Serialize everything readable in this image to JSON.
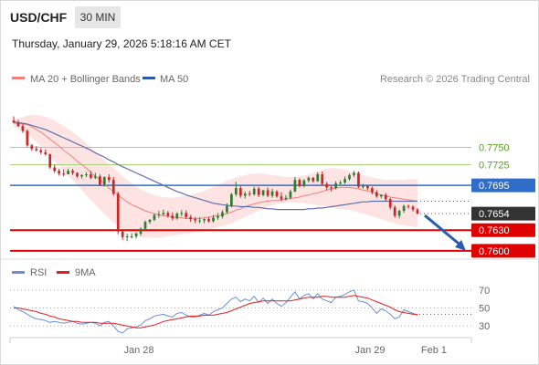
{
  "header": {
    "symbol": "USD/CHF",
    "timeframe": "30 MIN",
    "datetime": "Thursday, January 29, 2026 5:18:16 AM CET"
  },
  "legend": {
    "ma20_label": "MA 20 + Bollinger Bands",
    "ma50_label": "MA 50",
    "credit": "Research © 2026 Trading Central",
    "rsi_label": "RSI",
    "ma9_label": "9MA"
  },
  "colors": {
    "bull_candle": "#2e7d32",
    "bear_candle": "#c62828",
    "ma20": "#f08080",
    "bollinger_fill": "#fde4e2",
    "ma50": "#5b6fb0",
    "support": "#e00000",
    "pivot": "#2f6dc9",
    "resistance": "#a8d27a",
    "current_price": "#333333",
    "forecast_arrow": "#2a5db0",
    "rsi": "#6a8fd8",
    "rsi_ma9": "#e02020"
  },
  "chart_data": [
    {
      "type": "candlestick",
      "title": "USD/CHF",
      "x_ticks": [
        "Jan 28",
        "Jan 29",
        "Feb 1"
      ],
      "ylim": [
        0.758,
        0.7805
      ],
      "series": [
        {
          "name": "MA 20 + Bollinger Bands",
          "role": "ma20",
          "values": [
            0.7785,
            0.7785,
            0.7784,
            0.7783,
            0.778,
            0.7776,
            0.7772,
            0.7767,
            0.7762,
            0.7757,
            0.7752,
            0.7746,
            0.7741,
            0.7736,
            0.773,
            0.7725,
            0.772,
            0.7714,
            0.7708,
            0.7703,
            0.7697,
            0.7691,
            0.7686,
            0.7681,
            0.7676,
            0.7671,
            0.7667,
            0.7664,
            0.7661,
            0.7658,
            0.7656,
            0.7654,
            0.7652,
            0.7651,
            0.765,
            0.7649,
            0.7648,
            0.7648,
            0.7647,
            0.7647,
            0.7647,
            0.7647,
            0.7648,
            0.7649,
            0.765,
            0.7651,
            0.7652,
            0.7654,
            0.7656,
            0.7659,
            0.7661,
            0.7664,
            0.7666,
            0.7668,
            0.767,
            0.7671,
            0.7672,
            0.7673,
            0.7673,
            0.7674,
            0.7675,
            0.7676,
            0.7677,
            0.7678,
            0.768,
            0.7681,
            0.7683,
            0.7684,
            0.7686,
            0.7688,
            0.769,
            0.7691,
            0.7692,
            0.7692,
            0.7692,
            0.7691,
            0.769,
            0.7688,
            0.7687,
            0.7685,
            0.7683,
            0.7681,
            0.768,
            0.7678,
            0.7677,
            0.7676,
            0.7675,
            0.7674,
            0.7673,
            0.7672
          ]
        },
        {
          "name": "Bollinger upper",
          "role": "bb_upper",
          "values": [
            0.779,
            0.7792,
            0.7794,
            0.7796,
            0.7797,
            0.7797,
            0.7796,
            0.7794,
            0.7792,
            0.7789,
            0.7785,
            0.7781,
            0.7777,
            0.7772,
            0.7767,
            0.7762,
            0.7756,
            0.775,
            0.7744,
            0.7738,
            0.7732,
            0.7726,
            0.772,
            0.7714,
            0.7708,
            0.7703,
            0.7698,
            0.7693,
            0.7689,
            0.7686,
            0.7683,
            0.7681,
            0.7679,
            0.7678,
            0.7677,
            0.7677,
            0.7678,
            0.7679,
            0.768,
            0.7681,
            0.7683,
            0.7685,
            0.7687,
            0.769,
            0.7693,
            0.7696,
            0.7699,
            0.7702,
            0.7704,
            0.7706,
            0.7708,
            0.771,
            0.7711,
            0.7712,
            0.7712,
            0.7712,
            0.7711,
            0.771,
            0.7709,
            0.7708,
            0.7707,
            0.7707,
            0.7707,
            0.7708,
            0.7709,
            0.7711,
            0.7713,
            0.7715,
            0.7717,
            0.7719,
            0.772,
            0.772,
            0.7719,
            0.7718,
            0.7716,
            0.7714,
            0.7712,
            0.771,
            0.7708,
            0.7706,
            0.7705,
            0.7704,
            0.7703,
            0.7703,
            0.7703,
            0.7703,
            0.7703,
            0.7704,
            0.7704,
            0.7704
          ]
        },
        {
          "name": "Bollinger lower",
          "role": "bb_lower",
          "values": [
            0.778,
            0.7777,
            0.7773,
            0.7769,
            0.7764,
            0.7758,
            0.7751,
            0.7744,
            0.7737,
            0.773,
            0.7723,
            0.7716,
            0.7709,
            0.7702,
            0.7695,
            0.7688,
            0.7681,
            0.7674,
            0.7667,
            0.766,
            0.7653,
            0.7647,
            0.7641,
            0.7636,
            0.7631,
            0.7627,
            0.7624,
            0.7622,
            0.762,
            0.7619,
            0.7619,
            0.7619,
            0.7619,
            0.762,
            0.7621,
            0.7622,
            0.7623,
            0.7624,
            0.7625,
            0.7626,
            0.7627,
            0.7628,
            0.763,
            0.7631,
            0.7632,
            0.7634,
            0.7636,
            0.7638,
            0.764,
            0.7643,
            0.7646,
            0.7649,
            0.7652,
            0.7655,
            0.7658,
            0.7661,
            0.7664,
            0.7666,
            0.7668,
            0.7669,
            0.767,
            0.767,
            0.767,
            0.767,
            0.7669,
            0.7668,
            0.7667,
            0.7666,
            0.7665,
            0.7664,
            0.7663,
            0.7662,
            0.7661,
            0.766,
            0.7659,
            0.7658,
            0.7656,
            0.7654,
            0.7652,
            0.765,
            0.7648,
            0.7646,
            0.7644,
            0.7642,
            0.764,
            0.7638,
            0.7637,
            0.7636,
            0.7635,
            0.7634
          ]
        },
        {
          "name": "MA 50",
          "role": "ma50",
          "values": [
            0.7787,
            0.7786,
            0.7785,
            0.7784,
            0.7782,
            0.778,
            0.7778,
            0.7776,
            0.7773,
            0.777,
            0.7767,
            0.7764,
            0.7761,
            0.7758,
            0.7755,
            0.7752,
            0.7749,
            0.7746,
            0.7742,
            0.7739,
            0.7736,
            0.7732,
            0.7729,
            0.7725,
            0.7722,
            0.7719,
            0.7716,
            0.7713,
            0.771,
            0.7707,
            0.7704,
            0.7701,
            0.7698,
            0.7695,
            0.7692,
            0.7689,
            0.7686,
            0.7684,
            0.7681,
            0.7679,
            0.7677,
            0.7675,
            0.7673,
            0.7671,
            0.7669,
            0.7668,
            0.7667,
            0.7666,
            0.7665,
            0.7665,
            0.7664,
            0.7664,
            0.7664,
            0.7663,
            0.7663,
            0.7662,
            0.7661,
            0.7661,
            0.766,
            0.766,
            0.766,
            0.766,
            0.766,
            0.766,
            0.766,
            0.7661,
            0.7661,
            0.7662,
            0.7662,
            0.7663,
            0.7664,
            0.7665,
            0.7666,
            0.7667,
            0.7668,
            0.7669,
            0.767,
            0.7671,
            0.7671,
            0.7672,
            0.7672,
            0.7672,
            0.7672,
            0.7672,
            0.7672,
            0.7672,
            0.7672,
            0.7672,
            0.7672,
            0.7672
          ]
        },
        {
          "name": "candles",
          "role": "ohlc",
          "open": [
            0.7789,
            0.7786,
            0.7781,
            0.7774,
            0.7753,
            0.7748,
            0.7746,
            0.7743,
            0.774,
            0.7721,
            0.7716,
            0.7712,
            0.7711,
            0.7716,
            0.7713,
            0.7708,
            0.771,
            0.7711,
            0.7706,
            0.7708,
            0.7696,
            0.7707,
            0.7703,
            0.7683,
            0.7628,
            0.762,
            0.7621,
            0.7621,
            0.7625,
            0.7632,
            0.7642,
            0.7645,
            0.7652,
            0.7653,
            0.7655,
            0.7651,
            0.7647,
            0.7654,
            0.7655,
            0.7649,
            0.7646,
            0.7644,
            0.7644,
            0.7646,
            0.7643,
            0.7648,
            0.765,
            0.7656,
            0.7665,
            0.7682,
            0.7691,
            0.768,
            0.7683,
            0.7682,
            0.769,
            0.7681,
            0.7688,
            0.768,
            0.7686,
            0.7679,
            0.7675,
            0.7677,
            0.7686,
            0.7703,
            0.7694,
            0.7702,
            0.7706,
            0.7701,
            0.7711,
            0.7697,
            0.7692,
            0.7691,
            0.7698,
            0.7699,
            0.7704,
            0.771,
            0.7713,
            0.7693,
            0.7694,
            0.7691,
            0.7685,
            0.7679,
            0.7681,
            0.7675,
            0.7663,
            0.7651,
            0.7658,
            0.7665,
            0.7664,
            0.766
          ],
          "high": [
            0.7795,
            0.779,
            0.7784,
            0.7776,
            0.7755,
            0.7752,
            0.7749,
            0.7747,
            0.7741,
            0.7725,
            0.7719,
            0.7718,
            0.7719,
            0.7719,
            0.7714,
            0.7711,
            0.7714,
            0.7716,
            0.7713,
            0.7711,
            0.7708,
            0.7711,
            0.7707,
            0.7686,
            0.763,
            0.7625,
            0.7625,
            0.7627,
            0.7634,
            0.7644,
            0.7646,
            0.7654,
            0.7658,
            0.766,
            0.7658,
            0.7656,
            0.7656,
            0.7659,
            0.7659,
            0.7652,
            0.7649,
            0.7649,
            0.7647,
            0.7649,
            0.7652,
            0.7655,
            0.7659,
            0.7669,
            0.7684,
            0.77,
            0.7694,
            0.7686,
            0.7687,
            0.7693,
            0.7693,
            0.7688,
            0.7692,
            0.769,
            0.7688,
            0.7685,
            0.7681,
            0.7689,
            0.7707,
            0.7705,
            0.7704,
            0.7708,
            0.7707,
            0.7714,
            0.7715,
            0.77,
            0.7694,
            0.7701,
            0.7702,
            0.7708,
            0.7712,
            0.7716,
            0.7715,
            0.7697,
            0.7695,
            0.7693,
            0.7688,
            0.7682,
            0.7684,
            0.7677,
            0.7666,
            0.766,
            0.7667,
            0.7667,
            0.7666,
            0.7662
          ],
          "low": [
            0.7785,
            0.778,
            0.7771,
            0.7751,
            0.7745,
            0.7744,
            0.774,
            0.7738,
            0.7719,
            0.7713,
            0.7709,
            0.7708,
            0.7711,
            0.771,
            0.7706,
            0.7705,
            0.7707,
            0.7704,
            0.7704,
            0.7694,
            0.7693,
            0.7699,
            0.768,
            0.7624,
            0.7616,
            0.7614,
            0.7618,
            0.7618,
            0.7622,
            0.763,
            0.7639,
            0.7643,
            0.7648,
            0.7651,
            0.7648,
            0.7644,
            0.7645,
            0.765,
            0.7646,
            0.7642,
            0.764,
            0.764,
            0.764,
            0.7641,
            0.7641,
            0.7645,
            0.7647,
            0.7654,
            0.7663,
            0.7679,
            0.7677,
            0.7676,
            0.7679,
            0.768,
            0.7678,
            0.7679,
            0.7678,
            0.7677,
            0.7677,
            0.7672,
            0.7673,
            0.7675,
            0.7685,
            0.7692,
            0.7692,
            0.7699,
            0.7699,
            0.77,
            0.7695,
            0.7688,
            0.7686,
            0.7689,
            0.7696,
            0.7697,
            0.7702,
            0.7707,
            0.7691,
            0.769,
            0.7688,
            0.7682,
            0.7677,
            0.7676,
            0.7672,
            0.766,
            0.7648,
            0.7647,
            0.7655,
            0.7661,
            0.7657,
            0.7653
          ],
          "close": [
            0.7786,
            0.7781,
            0.7774,
            0.7753,
            0.7748,
            0.7746,
            0.7743,
            0.774,
            0.7721,
            0.7716,
            0.7712,
            0.7711,
            0.7716,
            0.7713,
            0.7708,
            0.771,
            0.7711,
            0.7706,
            0.7708,
            0.7696,
            0.7707,
            0.7703,
            0.7683,
            0.7628,
            0.762,
            0.7621,
            0.7621,
            0.7625,
            0.7632,
            0.7642,
            0.7645,
            0.7652,
            0.7653,
            0.7655,
            0.7651,
            0.7647,
            0.7654,
            0.7655,
            0.7649,
            0.7646,
            0.7644,
            0.7644,
            0.7646,
            0.7643,
            0.7648,
            0.765,
            0.7656,
            0.7665,
            0.7682,
            0.7691,
            0.768,
            0.7683,
            0.7682,
            0.769,
            0.7681,
            0.7688,
            0.768,
            0.7686,
            0.7679,
            0.7675,
            0.7677,
            0.7686,
            0.7703,
            0.7694,
            0.7702,
            0.7706,
            0.7701,
            0.7711,
            0.7697,
            0.7692,
            0.7691,
            0.7698,
            0.7699,
            0.7704,
            0.771,
            0.7713,
            0.7693,
            0.7694,
            0.7691,
            0.7685,
            0.7679,
            0.7681,
            0.7675,
            0.7663,
            0.7651,
            0.7658,
            0.7665,
            0.7664,
            0.766,
            0.7654
          ]
        }
      ],
      "levels": [
        {
          "value": 0.775,
          "label": "0.7750",
          "kind": "resistance"
        },
        {
          "value": 0.7725,
          "label": "0.7725",
          "kind": "resistance"
        },
        {
          "value": 0.7695,
          "label": "0.7695",
          "kind": "pivot"
        },
        {
          "value": 0.763,
          "label": "0.7630",
          "kind": "support"
        },
        {
          "value": 0.76,
          "label": "0.7600",
          "kind": "support"
        }
      ],
      "current_price": {
        "value": 0.7654,
        "label": "0.7654"
      },
      "forecast_target": 0.76
    },
    {
      "type": "line",
      "title": "RSI",
      "y_ticks": [
        "70",
        "50",
        "30"
      ],
      "ylim": [
        15,
        80
      ],
      "series": [
        {
          "name": "RSI",
          "values": [
            52,
            48,
            46,
            43,
            40,
            38,
            37,
            36,
            34,
            35,
            34,
            33,
            34,
            35,
            33,
            32,
            33,
            34,
            33,
            30,
            34,
            35,
            30,
            24,
            22,
            27,
            28,
            29,
            31,
            36,
            38,
            41,
            42,
            43,
            41,
            40,
            44,
            45,
            42,
            40,
            40,
            42,
            44,
            42,
            46,
            48,
            50,
            55,
            60,
            62,
            57,
            60,
            58,
            63,
            56,
            61,
            55,
            60,
            55,
            52,
            56,
            62,
            68,
            60,
            64,
            66,
            60,
            66,
            60,
            58,
            56,
            62,
            63,
            65,
            68,
            70,
            58,
            57,
            55,
            50,
            44,
            49,
            47,
            43,
            38,
            40,
            48,
            46,
            44,
            42
          ]
        },
        {
          "name": "9MA",
          "values": [
            50,
            50,
            49,
            48,
            47,
            46,
            44,
            43,
            41,
            40,
            38,
            37,
            36,
            35,
            35,
            34,
            34,
            34,
            34,
            33,
            33,
            33,
            33,
            32,
            31,
            30,
            29,
            28,
            28,
            29,
            30,
            31,
            33,
            35,
            36,
            37,
            38,
            39,
            40,
            41,
            41,
            41,
            42,
            42,
            42,
            43,
            44,
            45,
            47,
            49,
            51,
            53,
            55,
            56,
            57,
            58,
            58,
            58,
            58,
            58,
            58,
            58,
            59,
            60,
            61,
            62,
            62,
            62,
            63,
            63,
            62,
            62,
            62,
            62,
            63,
            64,
            63,
            62,
            61,
            59,
            57,
            55,
            53,
            51,
            48,
            46,
            45,
            44,
            43,
            43
          ]
        }
      ]
    }
  ]
}
